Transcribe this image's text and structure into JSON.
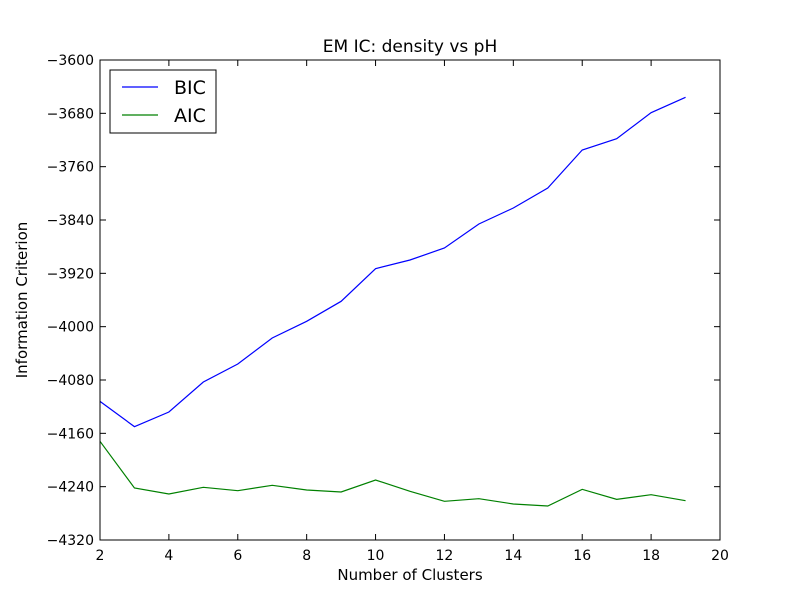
{
  "chart_data": {
    "type": "line",
    "title": "EM IC: density vs pH",
    "xlabel": "Number of Clusters",
    "ylabel": "Information Criterion",
    "xlim": [
      2,
      20
    ],
    "ylim": [
      -4320,
      -3600
    ],
    "xticks": [
      2,
      4,
      6,
      8,
      10,
      12,
      14,
      16,
      18,
      20
    ],
    "yticks": [
      -3600,
      -3680,
      -3760,
      -3840,
      -3920,
      -4000,
      -4080,
      -4160,
      -4240,
      -4320
    ],
    "grid": false,
    "legend_position": "top-left",
    "x": [
      2,
      3,
      4,
      5,
      6,
      7,
      8,
      9,
      10,
      11,
      12,
      13,
      14,
      15,
      16,
      17,
      18,
      19
    ],
    "series": [
      {
        "name": "BIC",
        "color": "#0000ff",
        "values": [
          -4112,
          -4150,
          -4128,
          -4083,
          -4056,
          -4017,
          -3992,
          -3962,
          -3913,
          -3900,
          -3882,
          -3846,
          -3822,
          -3792,
          -3735,
          -3718,
          -3679,
          -3656
        ]
      },
      {
        "name": "AIC",
        "color": "#008000",
        "values": [
          -4172,
          -4242,
          -4251,
          -4241,
          -4246,
          -4238,
          -4245,
          -4248,
          -4230,
          -4247,
          -4262,
          -4258,
          -4266,
          -4269,
          -4244,
          -4259,
          -4252,
          -4261
        ]
      }
    ]
  }
}
